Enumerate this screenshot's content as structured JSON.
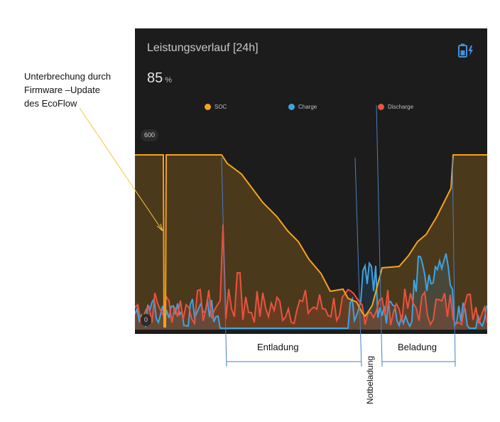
{
  "note": {
    "text": "Unterbrechung  durch\nFirmware –Update\ndes EcoFlow"
  },
  "card": {
    "title": "Leistungsverlauf [24h]",
    "icon": "battery-charging-icon",
    "value": "85",
    "unit": "%"
  },
  "legend": [
    {
      "label": "SOC",
      "color": "#f4a21f"
    },
    {
      "label": "Charge",
      "color": "#3fa3e2"
    },
    {
      "label": "Discharge",
      "color": "#e9533f"
    }
  ],
  "axis": {
    "top": "600",
    "bottom": "0"
  },
  "annotations": {
    "entladung": "Entladung",
    "notbeladung": "Notbeladung",
    "beladung": "Beladung"
  },
  "colors": {
    "soc": "#f4a21f",
    "charge": "#3fa3e2",
    "discharge": "#e9533f",
    "arrow": "#f4c542",
    "bracket": "#4a7fc0"
  }
}
